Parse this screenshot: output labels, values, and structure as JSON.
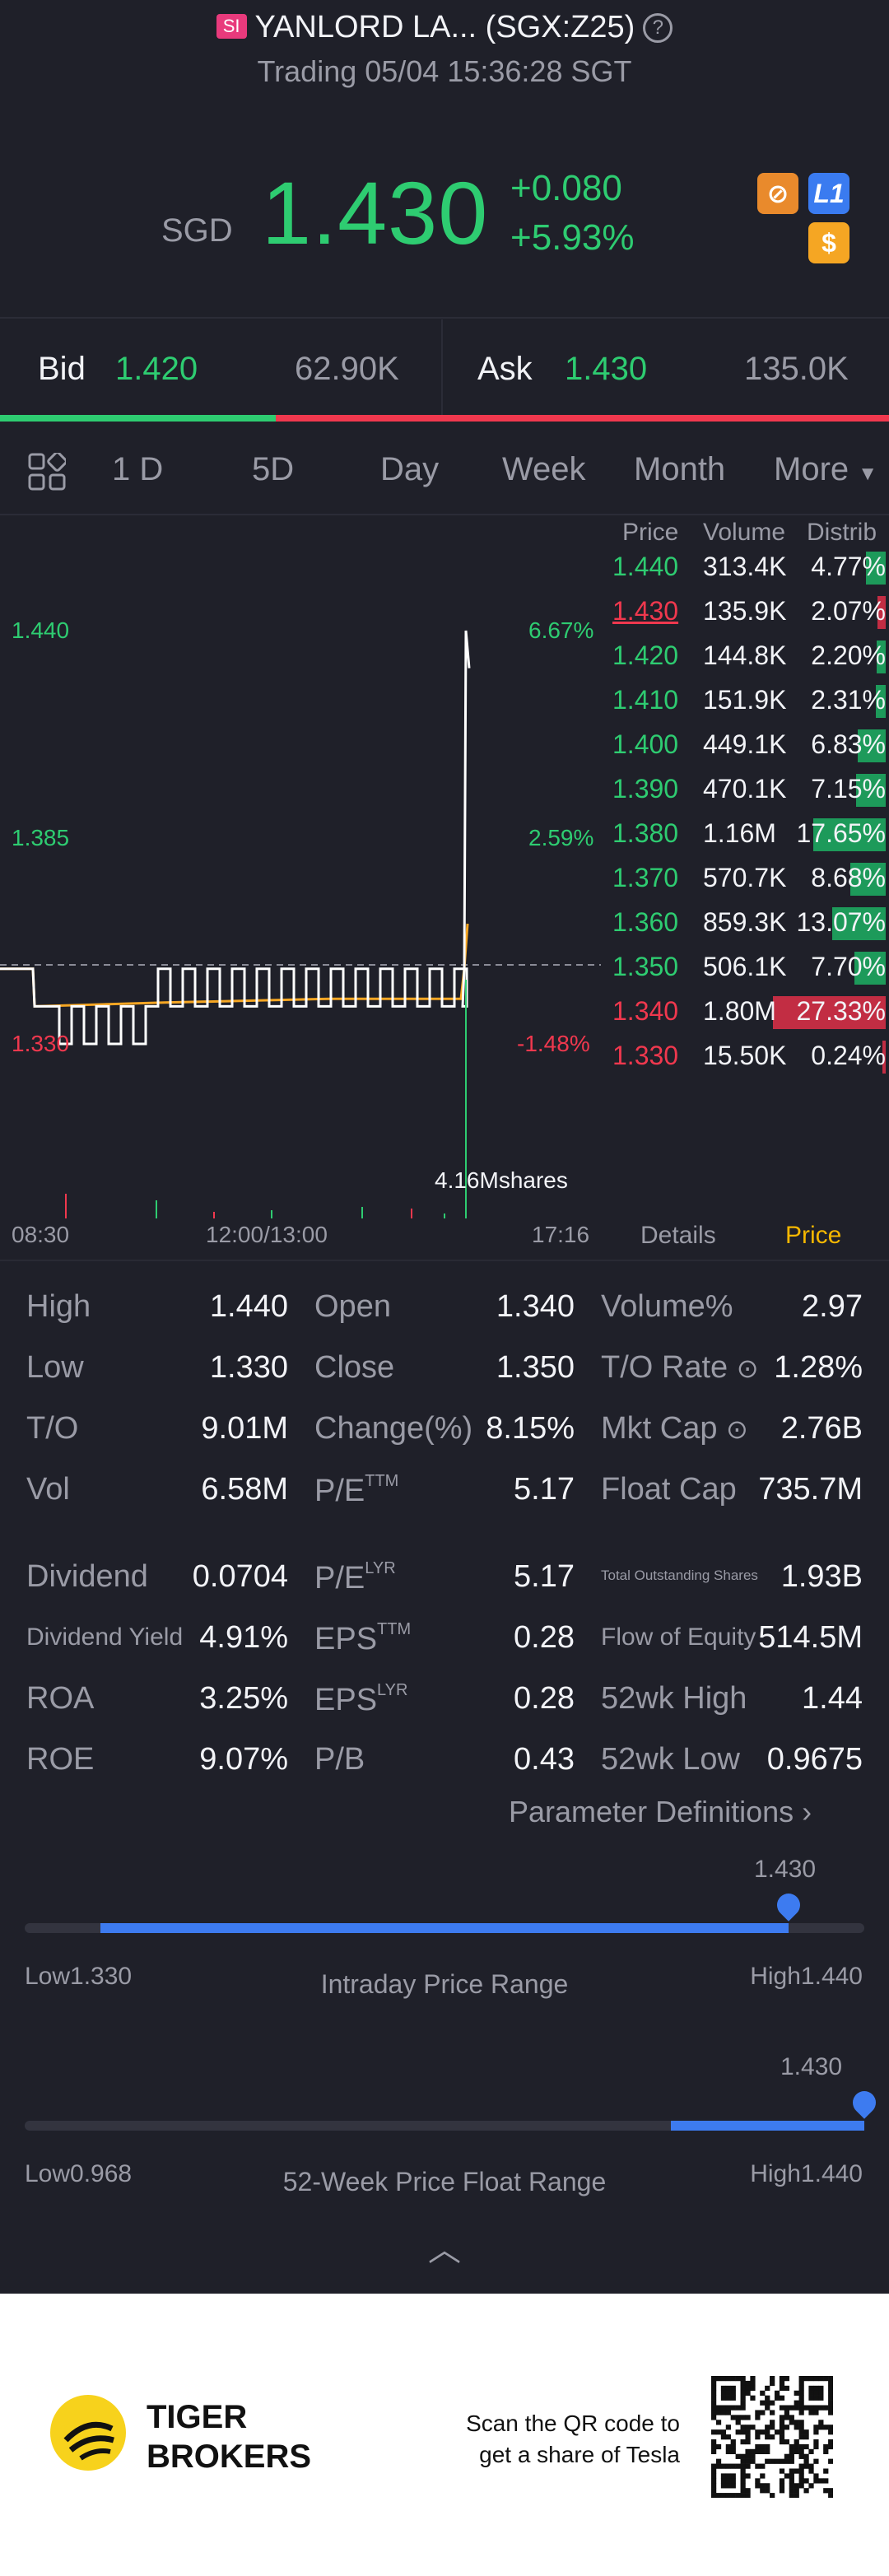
{
  "header": {
    "badge": "SI",
    "title": "YANLORD LA... (SGX:Z25)",
    "status": "Trading 05/04 15:36:28 SGT",
    "currency": "SGD",
    "price": "1.430",
    "change": "+0.080",
    "change_pct": "+5.93%"
  },
  "bidask": {
    "bid_label": "Bid",
    "bid_price": "1.420",
    "bid_size": "62.90K",
    "ask_label": "Ask",
    "ask_price": "1.430",
    "ask_size": "135.0K",
    "bid_ratio": 0.31
  },
  "tabs": [
    "1 D",
    "5D",
    "Day",
    "Week",
    "Month",
    "More"
  ],
  "active_tab": "1 D",
  "chart": {
    "y_high": "1.440",
    "y_mid": "1.385",
    "y_low": "1.330",
    "pct_high": "6.67%",
    "pct_mid": "2.59%",
    "pct_low": "-1.48%",
    "volume_label": "4.16Mshares",
    "time_start": "08:30",
    "time_mid": "12:00/13:00",
    "time_end": "17:16",
    "details_tab": "Details",
    "price_tab": "Price"
  },
  "chart_data": {
    "type": "line",
    "title": "",
    "ylim": [
      1.33,
      1.44
    ],
    "prev_close": 1.35,
    "series": [
      {
        "name": "Price",
        "color": "#ffffff"
      },
      {
        "name": "Average",
        "color": "#f5a623"
      }
    ]
  },
  "depth": {
    "headers": [
      "Price",
      "Volume",
      "Distrib"
    ],
    "rows": [
      {
        "price": "1.440",
        "volume": "313.4K",
        "dist": "4.77%",
        "pct": 4.77,
        "side": "green"
      },
      {
        "price": "1.430",
        "volume": "135.9K",
        "dist": "2.07%",
        "pct": 2.07,
        "side": "red"
      },
      {
        "price": "1.420",
        "volume": "144.8K",
        "dist": "2.20%",
        "pct": 2.2,
        "side": "green"
      },
      {
        "price": "1.410",
        "volume": "151.9K",
        "dist": "2.31%",
        "pct": 2.31,
        "side": "green"
      },
      {
        "price": "1.400",
        "volume": "449.1K",
        "dist": "6.83%",
        "pct": 6.83,
        "side": "green"
      },
      {
        "price": "1.390",
        "volume": "470.1K",
        "dist": "7.15%",
        "pct": 7.15,
        "side": "green"
      },
      {
        "price": "1.380",
        "volume": "1.16M",
        "dist": "17.65%",
        "pct": 17.65,
        "side": "green"
      },
      {
        "price": "1.370",
        "volume": "570.7K",
        "dist": "8.68%",
        "pct": 8.68,
        "side": "green"
      },
      {
        "price": "1.360",
        "volume": "859.3K",
        "dist": "13.07%",
        "pct": 13.07,
        "side": "green"
      },
      {
        "price": "1.350",
        "volume": "506.1K",
        "dist": "7.70%",
        "pct": 7.7,
        "side": "green"
      },
      {
        "price": "1.340",
        "volume": "1.80M",
        "dist": "27.33%",
        "pct": 27.33,
        "side": "red"
      },
      {
        "price": "1.330",
        "volume": "15.50K",
        "dist": "0.24%",
        "pct": 0.24,
        "side": "red"
      }
    ]
  },
  "stats": {
    "high_l": "High",
    "high_v": "1.440",
    "low_l": "Low",
    "low_v": "1.330",
    "to_l": "T/O",
    "to_v": "9.01M",
    "vol_l": "Vol",
    "vol_v": "6.58M",
    "open_l": "Open",
    "open_v": "1.340",
    "close_l": "Close",
    "close_v": "1.350",
    "chg_l": "Change(%)",
    "chg_v": "8.15%",
    "pe_l": "P/E",
    "pe_sup": "TTM",
    "pe_v": "5.17",
    "volpct_l": "Volume%",
    "volpct_v": "2.97",
    "torate_l": "T/O Rate",
    "torate_v": "1.28%",
    "mktcap_l": "Mkt Cap",
    "mktcap_v": "2.76B",
    "float_l": "Float Cap",
    "float_v": "735.7M",
    "div_l": "Dividend",
    "div_v": "0.0704",
    "divy_l": "Dividend Yield",
    "divy_v": "4.91%",
    "roa_l": "ROA",
    "roa_v": "3.25%",
    "roe_l": "ROE",
    "roe_v": "9.07%",
    "pelyr_l": "P/E",
    "pelyr_sup": "LYR",
    "pelyr_v": "5.17",
    "eps_l": "EPS",
    "eps_sup": "TTM",
    "eps_v": "0.28",
    "epslyr_l": "EPS",
    "epslyr_sup": "LYR",
    "epslyr_v": "0.28",
    "pb_l": "P/B",
    "pb_v": "0.43",
    "tos_l": "Total Outstanding Shares",
    "tos_v": "1.93B",
    "foe_l": "Flow of Equity",
    "foe_v": "514.5M",
    "wkh_l": "52wk High",
    "wkh_v": "1.44",
    "wkl_l": "52wk Low",
    "wkl_v": "0.9675",
    "param_def": "Parameter Definitions"
  },
  "intraday": {
    "current": "1.430",
    "low": "Low1.330",
    "high": "High1.440",
    "label": "Intraday Price Range",
    "fill_start": 0.09,
    "fill_end": 0.91
  },
  "week52": {
    "current": "1.430",
    "low": "Low0.968",
    "high": "High1.440",
    "label": "52-Week Price Float Range",
    "fill_start": 0.77,
    "fill_end": 1.0
  },
  "footer": {
    "brand1": "TIGER",
    "brand2": "BROKERS",
    "qr_text1": "Scan the QR code to",
    "qr_text2": "get a share of Tesla"
  }
}
